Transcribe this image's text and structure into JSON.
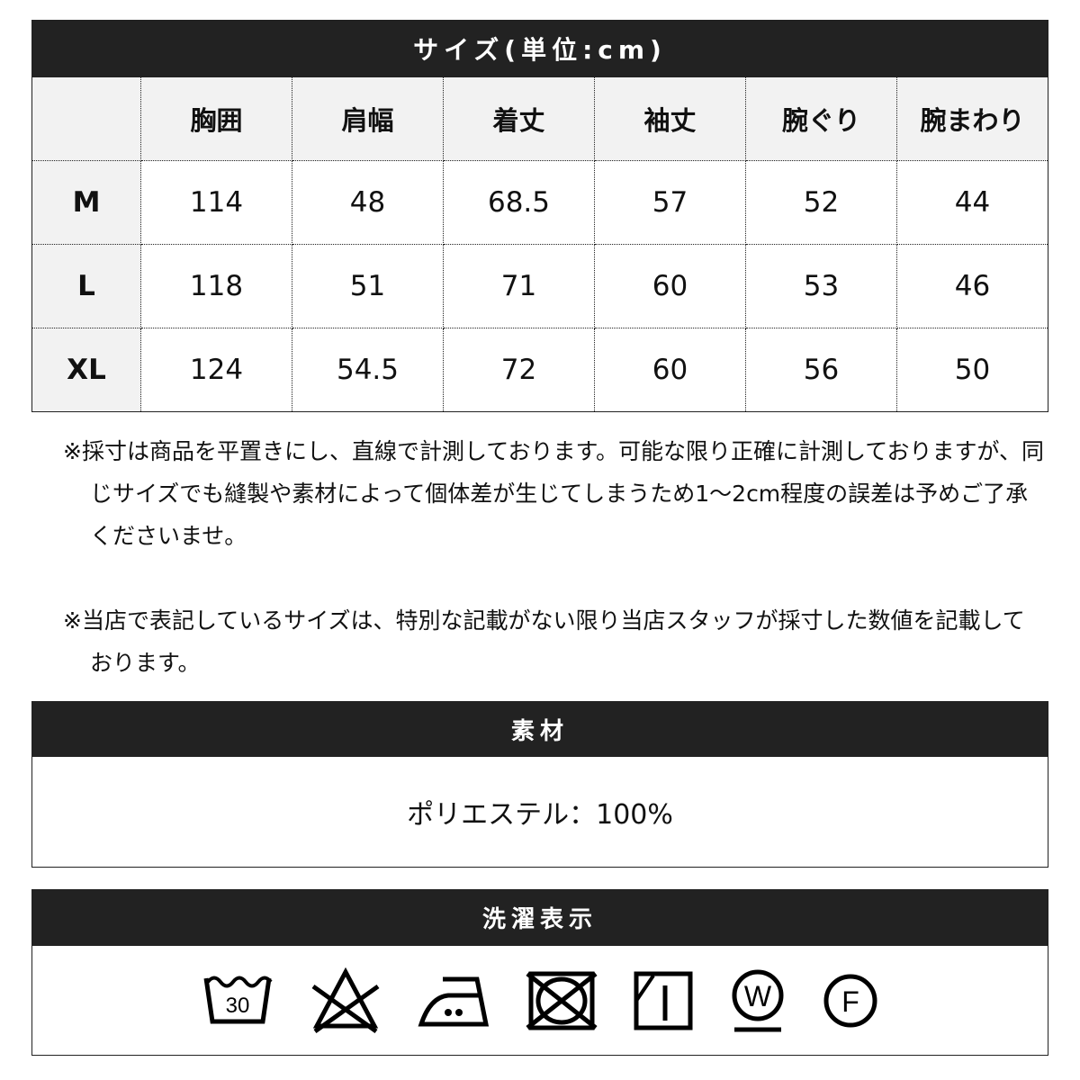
{
  "size_section": {
    "title": "サイズ(単位:cm)",
    "headers": [
      "",
      "胸囲",
      "肩幅",
      "着丈",
      "袖丈",
      "腕ぐり",
      "腕まわり"
    ],
    "rows": [
      {
        "size": "M",
        "values": [
          "114",
          "48",
          "68.5",
          "57",
          "52",
          "44"
        ]
      },
      {
        "size": "L",
        "values": [
          "118",
          "51",
          "71",
          "60",
          "53",
          "46"
        ]
      },
      {
        "size": "XL",
        "values": [
          "124",
          "54.5",
          "72",
          "60",
          "56",
          "50"
        ]
      }
    ]
  },
  "notes": [
    "※採寸は商品を平置きにし、直線で計測しております。可能な限り正確に計測しておりますが、同じサイズでも縫製や素材によって個体差が生じてしまうため1～2cm程度の誤差は予めご了承くださいませ。",
    "※当店で表記しているサイズは、特別な記載がない限り当店スタッフが採寸した数値を記載しております。"
  ],
  "material": {
    "title": "素材",
    "text": "ポリエステル：100%"
  },
  "laundry": {
    "title": "洗濯表示",
    "icons": [
      {
        "name": "wash-30-icon",
        "label": "30"
      },
      {
        "name": "no-bleach-icon"
      },
      {
        "name": "iron-medium-icon"
      },
      {
        "name": "no-tumble-dry-icon"
      },
      {
        "name": "drip-dry-shade-icon"
      },
      {
        "name": "wet-clean-gentle-icon",
        "label": "W"
      },
      {
        "name": "dry-clean-f-icon",
        "label": "F"
      }
    ]
  }
}
